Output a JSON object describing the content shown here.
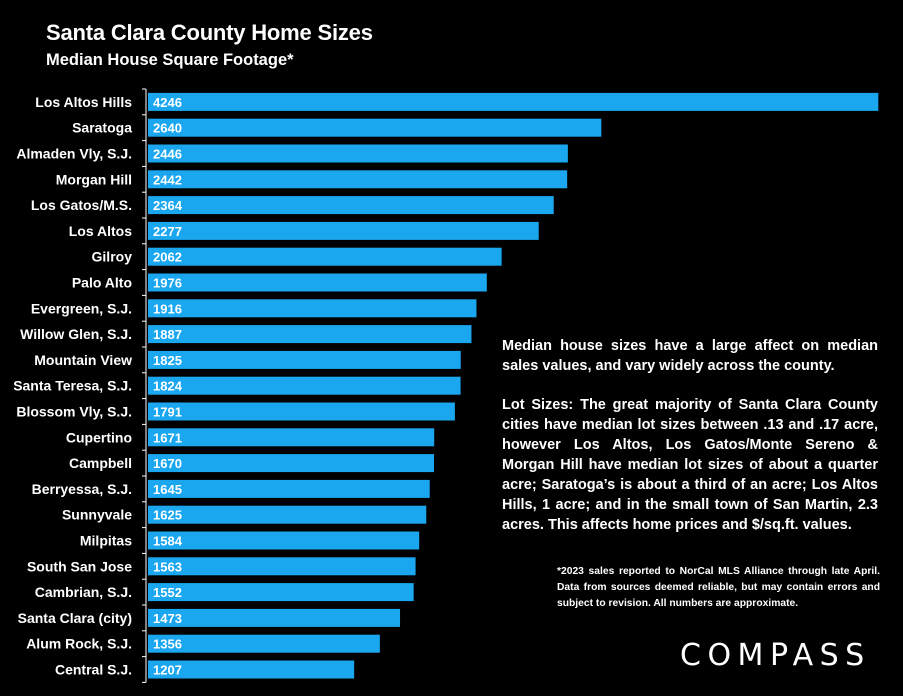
{
  "header": {
    "title": "Santa Clara County Home Sizes",
    "subtitle": "Median House Square Footage*"
  },
  "notes": {
    "paragraph1": "Median house sizes have a large affect on median sales values, and vary widely across the county.",
    "paragraph2": "Lot Sizes: The great majority of Santa Clara County cities have median lot sizes between .13 and .17 acre, however Los Altos, Los Gatos/Monte Sereno & Morgan Hill have median lot sizes of about a quarter acre; Saratoga’s is about a third of an acre; Los Altos Hills, 1 acre; and in the small town of San Martin, 2.3 acres. This affects home prices and $/sq.ft. values.",
    "footnote": "*2023 sales reported to NorCal MLS Alliance through late April. Data from sources deemed reliable, but may contain errors and subject to revision. All numbers are approximate."
  },
  "brand": {
    "logo_text": "COMPASS"
  },
  "chart_data": {
    "type": "bar",
    "orientation": "horizontal",
    "title": "Santa Clara County Home Sizes",
    "subtitle": "Median House Square Footage*",
    "categories": [
      "Los Altos Hills",
      "Saratoga",
      "Almaden Vly, S.J.",
      "Morgan Hill",
      "Los Gatos/M.S.",
      "Los Altos",
      "Gilroy",
      "Palo Alto",
      "Evergreen, S.J.",
      "Willow Glen, S.J.",
      "Mountain View",
      "Santa Teresa, S.J.",
      "Blossom Vly, S.J.",
      "Cupertino",
      "Campbell",
      "Berryessa, S.J.",
      "Sunnyvale",
      "Milpitas",
      "South San Jose",
      "Cambrian, S.J.",
      "Santa Clara (city)",
      "Alum Rock, S.J.",
      "Central S.J."
    ],
    "values": [
      4246,
      2640,
      2446,
      2442,
      2364,
      2277,
      2062,
      1976,
      1916,
      1887,
      1825,
      1824,
      1791,
      1671,
      1670,
      1645,
      1625,
      1584,
      1563,
      1552,
      1473,
      1356,
      1207
    ],
    "xlim": [
      0,
      4250
    ],
    "grid": false,
    "data_labels": "inside-left",
    "colors": {
      "bar": "#1aa7f0",
      "background": "#000000",
      "text": "#ffffff",
      "axis": "#ffffff"
    }
  }
}
